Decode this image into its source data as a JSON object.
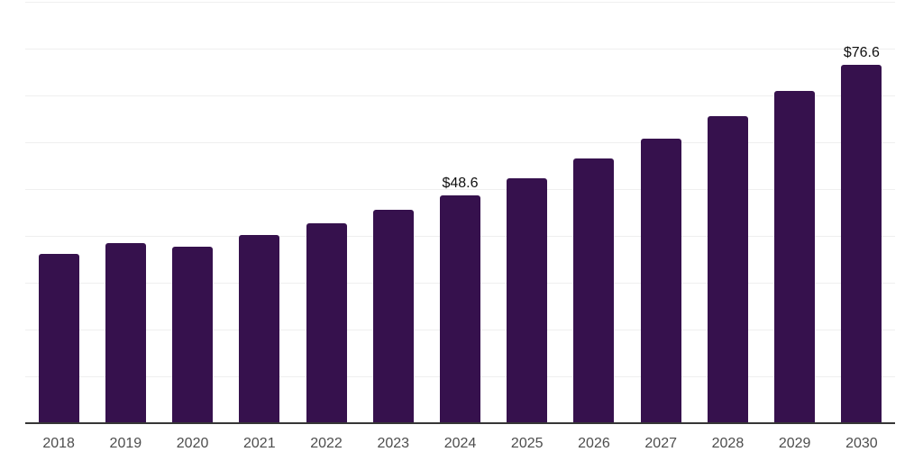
{
  "chart_data": {
    "type": "bar",
    "title": "",
    "xlabel": "",
    "ylabel": "",
    "categories": [
      "2018",
      "2019",
      "2020",
      "2021",
      "2022",
      "2023",
      "2024",
      "2025",
      "2026",
      "2027",
      "2028",
      "2029",
      "2030"
    ],
    "values": [
      36.1,
      38.5,
      37.7,
      40.1,
      42.6,
      45.6,
      48.6,
      52.4,
      56.6,
      60.8,
      65.5,
      70.9,
      76.6
    ],
    "data_labels": [
      "",
      "",
      "",
      "",
      "",
      "",
      "$48.6",
      "",
      "",
      "",
      "",
      "",
      "$76.6"
    ],
    "ylim": [
      0,
      90
    ],
    "gridline_step": 10,
    "grid": "horizontal",
    "legend_position": "none",
    "y_axis_labels_visible": false,
    "colors": {
      "bar": "#36114d",
      "axis_line": "#363636",
      "gridline": "#efefef",
      "tick_label": "#4d4d4d",
      "value_label": "#0f0f0f",
      "background": "#ffffff"
    }
  }
}
